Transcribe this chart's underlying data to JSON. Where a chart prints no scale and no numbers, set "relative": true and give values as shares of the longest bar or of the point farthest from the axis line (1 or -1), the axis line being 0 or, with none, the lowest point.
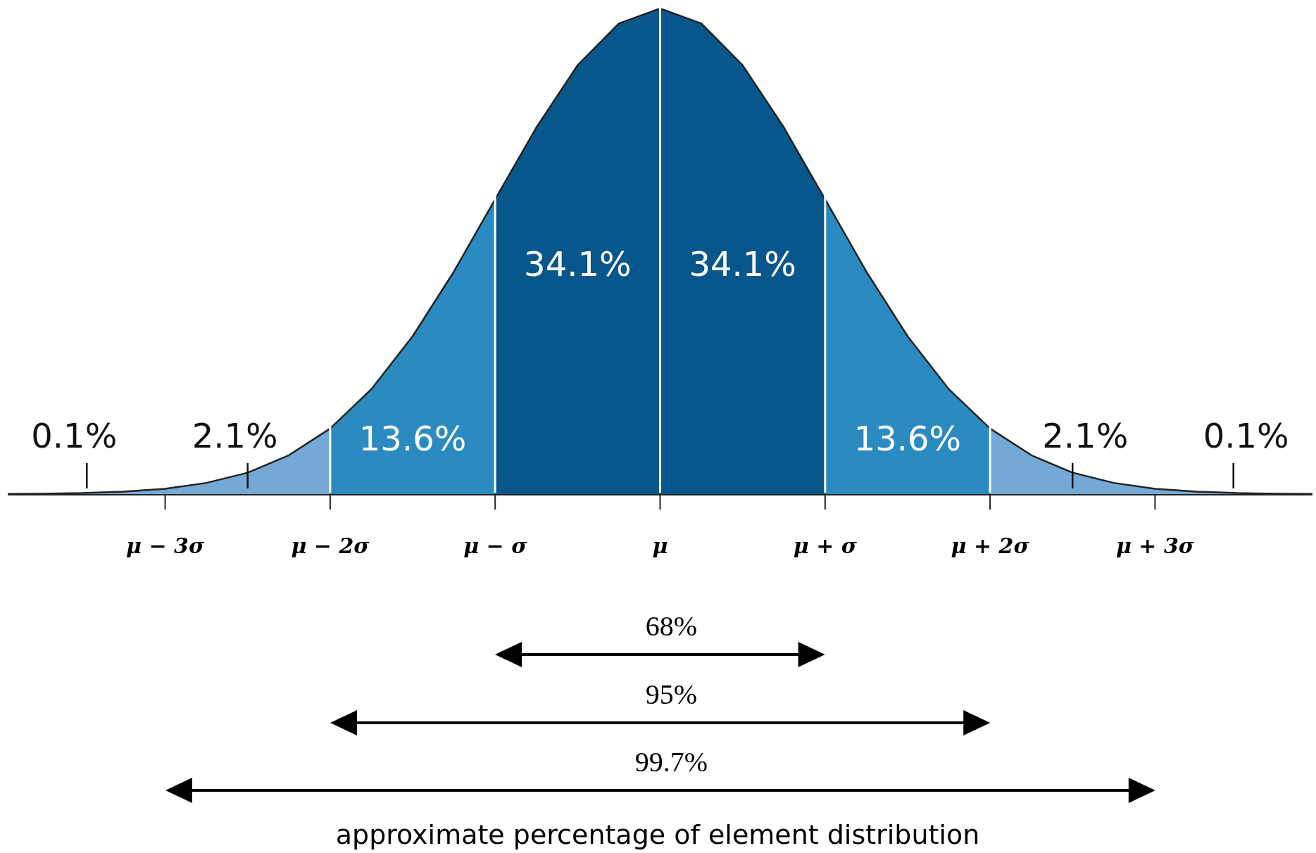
{
  "chart_data": {
    "type": "area",
    "relative": true,
    "grid": false,
    "legend": false,
    "xlim": [
      -3.95,
      3.95
    ],
    "xticks": [
      {
        "value": -3,
        "label": "μ − 3σ"
      },
      {
        "value": -2,
        "label": "μ − 2σ"
      },
      {
        "value": -1,
        "label": "μ − σ"
      },
      {
        "value": 0,
        "label": "μ"
      },
      {
        "value": 1,
        "label": "μ + σ"
      },
      {
        "value": 2,
        "label": "μ + 2σ"
      },
      {
        "value": 3,
        "label": "μ + 3σ"
      }
    ],
    "series": [
      {
        "color": "#74a9d5",
        "x": [
          -3.95,
          -3.75,
          -3.5,
          -3.25,
          -3,
          -2.75,
          -2.5,
          -2.25,
          -2
        ],
        "values": [
          0.0004,
          0.0009,
          0.002,
          0.005,
          0.011,
          0.023,
          0.044,
          0.08,
          0.135
        ]
      },
      {
        "color": "#2b8bc0",
        "x": [
          -2,
          -1.75,
          -1.5,
          -1.25,
          -1
        ],
        "values": [
          0.135,
          0.216,
          0.325,
          0.458,
          0.607
        ]
      },
      {
        "color": "#08578c",
        "x": [
          -1,
          -0.75,
          -0.5,
          -0.25,
          0
        ],
        "values": [
          0.607,
          0.755,
          0.883,
          0.969,
          1
        ]
      },
      {
        "color": "#08578c",
        "x": [
          0,
          0.25,
          0.5,
          0.75,
          1
        ],
        "values": [
          1,
          0.969,
          0.883,
          0.755,
          0.607
        ]
      },
      {
        "color": "#2b8bc0",
        "x": [
          1,
          1.25,
          1.5,
          1.75,
          2
        ],
        "values": [
          0.607,
          0.458,
          0.325,
          0.216,
          0.135
        ]
      },
      {
        "color": "#74a9d5",
        "x": [
          2,
          2.25,
          2.5,
          2.75,
          3,
          3.25,
          3.5,
          3.75,
          3.95
        ],
        "values": [
          0.135,
          0.08,
          0.044,
          0.023,
          0.011,
          0.005,
          0.002,
          0.0009,
          0.0004
        ]
      }
    ],
    "annotations": [
      "0.1%",
      "2.1%",
      "13.6%",
      "34.1%",
      "34.1%",
      "13.6%",
      "2.1%",
      "0.1%",
      "68%",
      "95%",
      "99.7%",
      "approximate percentage of element distribution"
    ],
    "ref_lines": [
      {
        "axis": "x",
        "value": -2,
        "color": "#ffffff"
      },
      {
        "axis": "x",
        "value": -1,
        "color": "#ffffff"
      },
      {
        "axis": "x",
        "value": 0,
        "color": "#ffffff"
      },
      {
        "axis": "x",
        "value": 1,
        "color": "#ffffff"
      },
      {
        "axis": "x",
        "value": 2,
        "color": "#ffffff"
      }
    ]
  }
}
